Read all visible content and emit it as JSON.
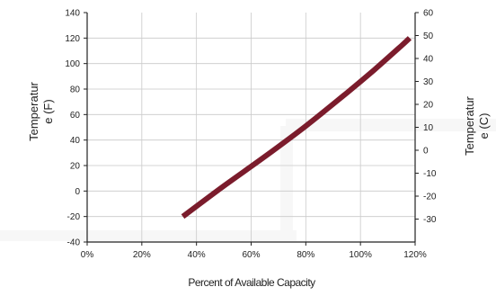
{
  "chart_data": {
    "type": "line",
    "title": "",
    "xlabel": "Percent of Available Capacity",
    "ylabel_left": [
      "Temperatur",
      "e (F)"
    ],
    "ylabel_right": [
      "Temperatur",
      "e (C)"
    ],
    "xlim": [
      0,
      120
    ],
    "ylim_left": [
      -40,
      140
    ],
    "ylim_right": [
      -40,
      60
    ],
    "x_ticks": [
      {
        "value": 0,
        "label": "0%"
      },
      {
        "value": 20,
        "label": "20%"
      },
      {
        "value": 40,
        "label": "40%"
      },
      {
        "value": 60,
        "label": "60%"
      },
      {
        "value": 80,
        "label": "80%"
      },
      {
        "value": 100,
        "label": "100%"
      },
      {
        "value": 120,
        "label": "120%"
      }
    ],
    "y_ticks_left": [
      {
        "value": 140,
        "label": "140"
      },
      {
        "value": 120,
        "label": "120"
      },
      {
        "value": 100,
        "label": "100"
      },
      {
        "value": 80,
        "label": "80"
      },
      {
        "value": 60,
        "label": "60"
      },
      {
        "value": 40,
        "label": "40"
      },
      {
        "value": 20,
        "label": "20"
      },
      {
        "value": 0,
        "label": "0"
      },
      {
        "value": -20,
        "label": "-20"
      },
      {
        "value": -40,
        "label": "-40"
      }
    ],
    "y_ticks_right": [
      {
        "value": 60,
        "label": "60"
      },
      {
        "value": 50,
        "label": "50"
      },
      {
        "value": 40,
        "label": "40"
      },
      {
        "value": 30,
        "label": "30"
      },
      {
        "value": 20,
        "label": "20"
      },
      {
        "value": 10,
        "label": "10"
      },
      {
        "value": 0,
        "label": "0"
      },
      {
        "value": -10,
        "label": "-10"
      },
      {
        "value": -20,
        "label": "-20"
      },
      {
        "value": -30,
        "label": "-30"
      }
    ],
    "grid": true,
    "series": [
      {
        "color": "#7b1c2c",
        "x": [
          35,
          50,
          65,
          80,
          95,
          105,
          115,
          118
        ],
        "y": [
          -20,
          4,
          27,
          51,
          77,
          95,
          114,
          120
        ]
      }
    ]
  }
}
